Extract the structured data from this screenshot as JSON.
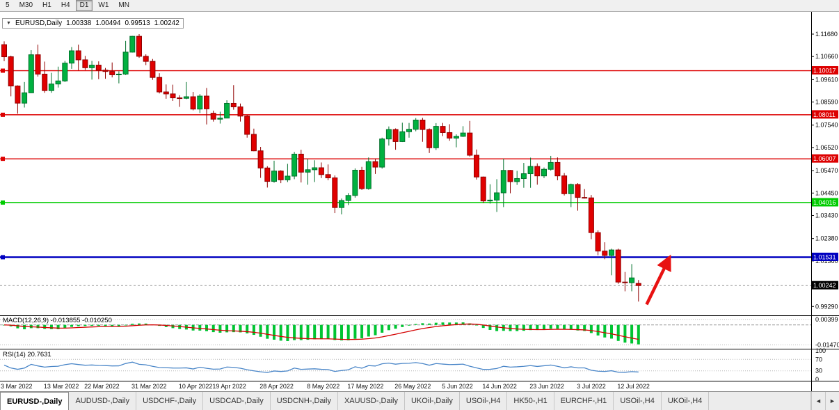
{
  "toolbar": {
    "timeframes": [
      {
        "label": "5",
        "active": false
      },
      {
        "label": "M30",
        "active": false
      },
      {
        "label": "H1",
        "active": false
      },
      {
        "label": "H4",
        "active": false
      },
      {
        "label": "D1",
        "active": true
      },
      {
        "label": "W1",
        "active": false
      },
      {
        "label": "MN",
        "active": false
      }
    ]
  },
  "chart": {
    "header": {
      "collapse_icon": "▼",
      "symbol_tf": "EURUSD,Daily",
      "open": "1.00338",
      "high": "1.00494",
      "low": "0.99513",
      "close": "1.00242"
    },
    "colors": {
      "bull": "#00b140",
      "bull_stroke": "#00702a",
      "bear": "#e00000",
      "bear_stroke": "#900000",
      "macd_hist": "#00c432",
      "macd_signal": "#d40000",
      "rsi_line": "#4a86c8"
    },
    "levels": [
      {
        "price": 1.10017,
        "label": "1.10017",
        "color": "#dd0000",
        "width": 1.4
      },
      {
        "price": 1.08011,
        "label": "1.08011",
        "color": "#dd0000",
        "width": 1.4
      },
      {
        "price": 1.06007,
        "label": "1.06007",
        "color": "#dd0000",
        "width": 1.4
      },
      {
        "price": 1.04016,
        "label": "1.04016",
        "color": "#00cc00",
        "width": 1.6
      },
      {
        "price": 1.01531,
        "label": "1.01531",
        "color": "#0000c0",
        "width": 2.6
      }
    ],
    "current_price": {
      "value": 1.00242,
      "label": "1.00242"
    },
    "price_axis": {
      "ticks": [
        "1.11680",
        "1.10660",
        "1.09610",
        "1.08590",
        "1.07540",
        "1.06520",
        "1.05470",
        "1.04450",
        "1.03430",
        "1.02380",
        "1.01360",
        "0.99290"
      ]
    },
    "x_ticks": [
      {
        "label": "3 Mar 2022",
        "index": 0
      },
      {
        "label": "13 Mar 2022",
        "index": 7
      },
      {
        "label": "22 Mar 2022",
        "index": 13
      },
      {
        "label": "31 Mar 2022",
        "index": 20
      },
      {
        "label": "10 Apr 2022",
        "index": 27
      },
      {
        "label": "19 Apr 2022",
        "index": 32
      },
      {
        "label": "28 Apr 2022",
        "index": 39
      },
      {
        "label": "8 May 2022",
        "index": 46
      },
      {
        "label": "17 May 2022",
        "index": 52
      },
      {
        "label": "26 May 2022",
        "index": 59
      },
      {
        "label": "5 Jun 2022",
        "index": 66
      },
      {
        "label": "14 Jun 2022",
        "index": 72
      },
      {
        "label": "23 Jun 2022",
        "index": 79
      },
      {
        "label": "3 Jul 2022",
        "index": 86
      },
      {
        "label": "12 Jul 2022",
        "index": 92
      }
    ],
    "annotation": {
      "type": "arrow",
      "color": "#e81212",
      "from_index": 95.2,
      "from_price": 0.9938,
      "to_index": 98.6,
      "to_price": 1.0152
    }
  },
  "macd": {
    "name": "MACD(12,26,9)",
    "value_main": "-0.013855",
    "value_signal": "-0.010250",
    "axis": [
      "0.00399",
      "-0.01470"
    ],
    "params": {
      "fast": 12,
      "slow": 26,
      "signal": 9
    }
  },
  "rsi": {
    "name": "RSI(14)",
    "value": "20.7631",
    "axis": [
      "100",
      "70",
      "30",
      "0"
    ],
    "period": 14
  },
  "tabs": {
    "nav_left": "◄",
    "nav_right": "►",
    "items": [
      {
        "label": "EURUSD-,Daily",
        "active": true
      },
      {
        "label": "AUDUSD-,Daily",
        "active": false
      },
      {
        "label": "USDCHF-,Daily",
        "active": false
      },
      {
        "label": "USDCAD-,Daily",
        "active": false
      },
      {
        "label": "USDCNH-,Daily",
        "active": false
      },
      {
        "label": "XAUUSD-,Daily",
        "active": false
      },
      {
        "label": "UKOil-,Daily",
        "active": false
      },
      {
        "label": "USOil-,H4",
        "active": false
      },
      {
        "label": "HK50-,H1",
        "active": false
      },
      {
        "label": "EURCHF-,H1",
        "active": false
      },
      {
        "label": "USOil-,H4",
        "active": false
      },
      {
        "label": "UKOil-,H4",
        "active": false
      }
    ]
  },
  "chart_data": {
    "type": "candlestick",
    "symbol": "EURUSD",
    "timeframe": "Daily",
    "title": "EURUSD,Daily",
    "ylim": [
      0.9895,
      1.1225
    ],
    "x_range": [
      "3 Mar 2022",
      "12 Jul 2022"
    ],
    "indicators": [
      {
        "type": "MACD",
        "fast": 12,
        "slow": 26,
        "signal": 9
      },
      {
        "type": "RSI",
        "period": 14
      }
    ],
    "levels": [
      1.10017,
      1.08011,
      1.06007,
      1.04016,
      1.01531
    ],
    "last_price": 1.00242,
    "candles": [
      [
        1.112,
        1.1135,
        1.1045,
        1.1065
      ],
      [
        1.1065,
        1.107,
        1.0885,
        1.0932
      ],
      [
        1.0932,
        1.0935,
        1.0806,
        1.0854
      ],
      [
        1.0854,
        1.095,
        1.0834,
        1.0901
      ],
      [
        1.0901,
        1.1095,
        1.09,
        1.1074
      ],
      [
        1.1074,
        1.112,
        1.0975,
        1.0986
      ],
      [
        1.0986,
        1.1043,
        1.0901,
        1.0911
      ],
      [
        1.0911,
        1.0992,
        1.0901,
        1.0941
      ],
      [
        1.0941,
        1.102,
        1.0925,
        1.0955
      ],
      [
        1.0955,
        1.1046,
        1.095,
        1.1036
      ],
      [
        1.1036,
        1.1109,
        1.101,
        1.1092
      ],
      [
        1.1092,
        1.112,
        1.1003,
        1.1051
      ],
      [
        1.1051,
        1.1069,
        1.1005,
        1.1015
      ],
      [
        1.1015,
        1.1046,
        1.0961,
        1.1027
      ],
      [
        1.1027,
        1.1044,
        1.0963,
        1.1004
      ],
      [
        1.1004,
        1.1014,
        1.0965,
        1.0998
      ],
      [
        1.0998,
        1.1039,
        1.0971,
        1.0983
      ],
      [
        1.0983,
        1.0999,
        1.0944,
        1.0986
      ],
      [
        1.0986,
        1.1137,
        1.0982,
        1.1086
      ],
      [
        1.1086,
        1.116,
        1.1084,
        1.1158
      ],
      [
        1.1158,
        1.1168,
        1.106,
        1.1067
      ],
      [
        1.1067,
        1.1076,
        1.1027,
        1.1044
      ],
      [
        1.1044,
        1.1055,
        1.096,
        1.0971
      ],
      [
        1.0971,
        1.099,
        1.0898,
        1.0905
      ],
      [
        1.0905,
        1.0939,
        1.0874,
        1.0896
      ],
      [
        1.0896,
        1.0938,
        1.0864,
        1.0878
      ],
      [
        1.0878,
        1.089,
        1.0837,
        1.0876
      ],
      [
        1.0876,
        1.095,
        1.0872,
        1.0883
      ],
      [
        1.0883,
        1.0905,
        1.0821,
        1.0827
      ],
      [
        1.0827,
        1.0895,
        1.0809,
        1.0886
      ],
      [
        1.0886,
        1.0923,
        1.0757,
        1.0828
      ],
      [
        1.0808,
        1.082,
        1.077,
        1.0781
      ],
      [
        1.0781,
        1.0815,
        1.0761,
        1.0786
      ],
      [
        1.0786,
        1.0867,
        1.0785,
        1.0853
      ],
      [
        1.0853,
        1.0936,
        1.0824,
        1.0837
      ],
      [
        1.0837,
        1.0852,
        1.077,
        1.0795
      ],
      [
        1.0795,
        1.08,
        1.0697,
        1.0712
      ],
      [
        1.0712,
        1.0738,
        1.0635,
        1.0637
      ],
      [
        1.0637,
        1.0655,
        1.0514,
        1.0559
      ],
      [
        1.0559,
        1.0567,
        1.047,
        1.0498
      ],
      [
        1.0498,
        1.0592,
        1.0492,
        1.0545
      ],
      [
        1.0545,
        1.0549,
        1.049,
        1.0505
      ],
      [
        1.0505,
        1.0578,
        1.0495,
        1.0522
      ],
      [
        1.0522,
        1.0632,
        1.0508,
        1.0622
      ],
      [
        1.0622,
        1.0642,
        1.0493,
        1.054
      ],
      [
        1.054,
        1.0599,
        1.0483,
        1.0551
      ],
      [
        1.0551,
        1.0594,
        1.0495,
        1.056
      ],
      [
        1.056,
        1.0584,
        1.0513,
        1.0529
      ],
      [
        1.0529,
        1.0575,
        1.0503,
        1.0514
      ],
      [
        1.0514,
        1.0525,
        1.0354,
        1.0379
      ],
      [
        1.0379,
        1.042,
        1.0348,
        1.0411
      ],
      [
        1.0411,
        1.0445,
        1.039,
        1.0434
      ],
      [
        1.0434,
        1.0557,
        1.0424,
        1.0549
      ],
      [
        1.0549,
        1.0564,
        1.0459,
        1.0465
      ],
      [
        1.0465,
        1.0607,
        1.046,
        1.0588
      ],
      [
        1.0588,
        1.0602,
        1.0532,
        1.0563
      ],
      [
        1.0563,
        1.0697,
        1.0556,
        1.0691
      ],
      [
        1.0691,
        1.0748,
        1.0661,
        1.0734
      ],
      [
        1.0734,
        1.0739,
        1.0642,
        1.0679
      ],
      [
        1.0679,
        1.0765,
        1.0677,
        1.0724
      ],
      [
        1.0724,
        1.0764,
        1.0697,
        1.0735
      ],
      [
        1.0735,
        1.0786,
        1.0726,
        1.0777
      ],
      [
        1.0777,
        1.0787,
        1.0678,
        1.0734
      ],
      [
        1.0734,
        1.0739,
        1.0627,
        1.0651
      ],
      [
        1.0651,
        1.0763,
        1.0641,
        1.0748
      ],
      [
        1.0748,
        1.0764,
        1.0704,
        1.072
      ],
      [
        1.072,
        1.0758,
        1.0683,
        1.0695
      ],
      [
        1.0695,
        1.0712,
        1.0653,
        1.0703
      ],
      [
        1.0703,
        1.0749,
        1.07,
        1.0718
      ],
      [
        1.0718,
        1.0773,
        1.0611,
        1.0617
      ],
      [
        1.0617,
        1.0643,
        1.0506,
        1.0518
      ],
      [
        1.0518,
        1.052,
        1.0399,
        1.0409
      ],
      [
        1.0409,
        1.0485,
        1.0397,
        1.0413
      ],
      [
        1.0413,
        1.0508,
        1.0359,
        1.0446
      ],
      [
        1.0446,
        1.0601,
        1.0381,
        1.0548
      ],
      [
        1.0548,
        1.055,
        1.0444,
        1.0497
      ],
      [
        1.0497,
        1.0546,
        1.0482,
        1.0511
      ],
      [
        1.0511,
        1.0582,
        1.0469,
        1.0533
      ],
      [
        1.0533,
        1.0606,
        1.0469,
        1.0566
      ],
      [
        1.0566,
        1.058,
        1.0483,
        1.0523
      ],
      [
        1.0523,
        1.0561,
        1.0513,
        1.0553
      ],
      [
        1.0553,
        1.0614,
        1.0547,
        1.0584
      ],
      [
        1.0584,
        1.0607,
        1.0503,
        1.0523
      ],
      [
        1.0523,
        1.0536,
        1.0434,
        1.0442
      ],
      [
        1.0442,
        1.0488,
        1.0381,
        1.0484
      ],
      [
        1.0484,
        1.049,
        1.0365,
        1.0425
      ],
      [
        1.0425,
        1.0463,
        1.042,
        1.0423
      ],
      [
        1.0423,
        1.0436,
        1.0235,
        1.0265
      ],
      [
        1.0265,
        1.0275,
        1.0162,
        1.0181
      ],
      [
        1.0181,
        1.0221,
        1.0144,
        1.0161
      ],
      [
        1.0161,
        1.0192,
        1.0071,
        1.0186
      ],
      [
        1.0186,
        1.0192,
        1.0032,
        1.004
      ],
      [
        1.004,
        1.0086,
        0.9998,
        1.0037
      ],
      [
        1.0037,
        1.0122,
        0.9998,
        1.0059
      ],
      [
        1.00338,
        1.00494,
        0.99513,
        1.00242
      ]
    ]
  }
}
